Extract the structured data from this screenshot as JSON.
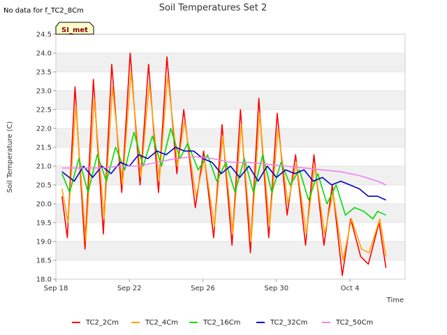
{
  "chart_data": {
    "type": "line",
    "title": "Soil Temperatures Set 2",
    "note": "No data for f_TC2_8Cm",
    "badge": "SI_met",
    "xlabel": "Time",
    "ylabel": "Soil Temperature (C)",
    "xlim": [
      "2016-09-18",
      "2016-10-07"
    ],
    "ylim": [
      18.0,
      24.5
    ],
    "x_ticks": [
      {
        "date": "2016-09-18",
        "label": "Sep 18"
      },
      {
        "date": "2016-09-22",
        "label": "Sep 22"
      },
      {
        "date": "2016-09-26",
        "label": "Sep 26"
      },
      {
        "date": "2016-09-30",
        "label": "Sep 30"
      },
      {
        "date": "2016-10-04",
        "label": "Oct 4"
      }
    ],
    "y_ticks": [
      "18.0",
      "18.5",
      "19.0",
      "19.5",
      "20.0",
      "20.5",
      "21.0",
      "21.5",
      "22.0",
      "22.5",
      "23.0",
      "23.5",
      "24.0",
      "24.5"
    ],
    "grid": "horizontal bands",
    "legend_position": "bottom",
    "series": [
      {
        "name": "TC2_2Cm",
        "color": "#ff0000",
        "points": [
          [
            "2016-09-18T08:00",
            20.2
          ],
          [
            "2016-09-18T15:00",
            19.1
          ],
          [
            "2016-09-19T01:00",
            23.1
          ],
          [
            "2016-09-19T14:00",
            18.8
          ],
          [
            "2016-09-20T01:00",
            23.3
          ],
          [
            "2016-09-20T14:00",
            19.2
          ],
          [
            "2016-09-21T01:00",
            23.7
          ],
          [
            "2016-09-21T14:00",
            20.3
          ],
          [
            "2016-09-22T01:00",
            24.0
          ],
          [
            "2016-09-22T14:00",
            20.5
          ],
          [
            "2016-09-23T01:00",
            23.7
          ],
          [
            "2016-09-23T14:00",
            20.3
          ],
          [
            "2016-09-24T01:00",
            23.9
          ],
          [
            "2016-09-24T14:00",
            20.8
          ],
          [
            "2016-09-24T23:00",
            22.5
          ],
          [
            "2016-09-25T14:00",
            19.9
          ],
          [
            "2016-09-26T01:00",
            21.4
          ],
          [
            "2016-09-26T14:00",
            19.1
          ],
          [
            "2016-09-27T01:00",
            22.1
          ],
          [
            "2016-09-27T14:00",
            18.9
          ],
          [
            "2016-09-28T01:00",
            22.5
          ],
          [
            "2016-09-28T14:00",
            18.7
          ],
          [
            "2016-09-29T01:00",
            22.8
          ],
          [
            "2016-09-29T14:00",
            19.1
          ],
          [
            "2016-09-30T01:00",
            22.4
          ],
          [
            "2016-09-30T14:00",
            19.7
          ],
          [
            "2016-10-01T01:00",
            21.3
          ],
          [
            "2016-10-01T14:00",
            18.9
          ],
          [
            "2016-10-02T01:00",
            21.3
          ],
          [
            "2016-10-02T14:00",
            18.9
          ],
          [
            "2016-10-03T01:00",
            20.5
          ],
          [
            "2016-10-03T14:00",
            18.1
          ],
          [
            "2016-10-04T01:00",
            19.6
          ],
          [
            "2016-10-04T14:00",
            18.6
          ],
          [
            "2016-10-05T00:00",
            18.4
          ],
          [
            "2016-10-05T14:00",
            19.5
          ],
          [
            "2016-10-05T23:00",
            18.3
          ]
        ]
      },
      {
        "name": "TC2_4Cm",
        "color": "#ffa500",
        "points": [
          [
            "2016-09-18T08:00",
            20.4
          ],
          [
            "2016-09-18T16:00",
            19.5
          ],
          [
            "2016-09-19T02:00",
            22.6
          ],
          [
            "2016-09-19T15:00",
            19.0
          ],
          [
            "2016-09-20T02:00",
            22.8
          ],
          [
            "2016-09-20T15:00",
            19.6
          ],
          [
            "2016-09-21T02:00",
            23.1
          ],
          [
            "2016-09-21T15:00",
            20.5
          ],
          [
            "2016-09-22T02:00",
            23.5
          ],
          [
            "2016-09-22T15:00",
            20.7
          ],
          [
            "2016-09-23T02:00",
            23.2
          ],
          [
            "2016-09-23T15:00",
            20.6
          ],
          [
            "2016-09-24T02:00",
            23.4
          ],
          [
            "2016-09-24T15:00",
            21.0
          ],
          [
            "2016-09-25T00:00",
            22.2
          ],
          [
            "2016-09-25T15:00",
            20.2
          ],
          [
            "2016-09-26T02:00",
            21.2
          ],
          [
            "2016-09-26T15:00",
            19.4
          ],
          [
            "2016-09-27T02:00",
            21.8
          ],
          [
            "2016-09-27T15:00",
            19.2
          ],
          [
            "2016-09-28T02:00",
            22.1
          ],
          [
            "2016-09-28T15:00",
            19.0
          ],
          [
            "2016-09-29T02:00",
            22.4
          ],
          [
            "2016-09-29T15:00",
            19.4
          ],
          [
            "2016-09-30T02:00",
            22.0
          ],
          [
            "2016-09-30T15:00",
            20.0
          ],
          [
            "2016-10-01T02:00",
            21.1
          ],
          [
            "2016-10-01T15:00",
            19.2
          ],
          [
            "2016-10-02T02:00",
            21.0
          ],
          [
            "2016-10-02T15:00",
            19.2
          ],
          [
            "2016-10-03T02:00",
            20.3
          ],
          [
            "2016-10-03T15:00",
            18.5
          ],
          [
            "2016-10-04T02:00",
            19.6
          ],
          [
            "2016-10-04T15:00",
            18.8
          ],
          [
            "2016-10-05T01:00",
            18.7
          ],
          [
            "2016-10-05T15:00",
            19.6
          ],
          [
            "2016-10-05T23:00",
            18.6
          ]
        ]
      },
      {
        "name": "TC2_16Cm",
        "color": "#00dd00",
        "points": [
          [
            "2016-09-18T08:00",
            20.8
          ],
          [
            "2016-09-18T18:00",
            20.3
          ],
          [
            "2016-09-19T06:00",
            21.2
          ],
          [
            "2016-09-19T18:00",
            20.3
          ],
          [
            "2016-09-20T06:00",
            21.3
          ],
          [
            "2016-09-20T18:00",
            20.6
          ],
          [
            "2016-09-21T06:00",
            21.5
          ],
          [
            "2016-09-21T18:00",
            20.9
          ],
          [
            "2016-09-22T06:00",
            21.9
          ],
          [
            "2016-09-22T18:00",
            21.0
          ],
          [
            "2016-09-23T06:00",
            21.8
          ],
          [
            "2016-09-23T18:00",
            21.0
          ],
          [
            "2016-09-24T06:00",
            22.0
          ],
          [
            "2016-09-24T18:00",
            21.2
          ],
          [
            "2016-09-25T04:00",
            21.6
          ],
          [
            "2016-09-25T18:00",
            20.9
          ],
          [
            "2016-09-26T06:00",
            21.3
          ],
          [
            "2016-09-26T18:00",
            20.6
          ],
          [
            "2016-09-27T06:00",
            21.1
          ],
          [
            "2016-09-27T18:00",
            20.3
          ],
          [
            "2016-09-28T06:00",
            21.2
          ],
          [
            "2016-09-28T18:00",
            20.3
          ],
          [
            "2016-09-29T06:00",
            21.3
          ],
          [
            "2016-09-29T18:00",
            20.3
          ],
          [
            "2016-09-30T06:00",
            21.1
          ],
          [
            "2016-09-30T18:00",
            20.5
          ],
          [
            "2016-10-01T06:00",
            20.9
          ],
          [
            "2016-10-01T18:00",
            20.1
          ],
          [
            "2016-10-02T06:00",
            20.8
          ],
          [
            "2016-10-02T18:00",
            20.0
          ],
          [
            "2016-10-03T06:00",
            20.5
          ],
          [
            "2016-10-03T18:00",
            19.7
          ],
          [
            "2016-10-04T06:00",
            19.9
          ],
          [
            "2016-10-04T18:00",
            19.8
          ],
          [
            "2016-10-05T06:00",
            19.6
          ],
          [
            "2016-10-05T12:00",
            19.8
          ],
          [
            "2016-10-05T23:00",
            19.7
          ]
        ]
      },
      {
        "name": "TC2_32Cm",
        "color": "#0000cc",
        "points": [
          [
            "2016-09-18T08:00",
            20.85
          ],
          [
            "2016-09-19T00:00",
            20.6
          ],
          [
            "2016-09-19T12:00",
            21.0
          ],
          [
            "2016-09-20T00:00",
            20.7
          ],
          [
            "2016-09-20T12:00",
            21.0
          ],
          [
            "2016-09-21T00:00",
            20.8
          ],
          [
            "2016-09-21T12:00",
            21.1
          ],
          [
            "2016-09-22T00:00",
            21.0
          ],
          [
            "2016-09-22T12:00",
            21.3
          ],
          [
            "2016-09-23T00:00",
            21.2
          ],
          [
            "2016-09-23T12:00",
            21.4
          ],
          [
            "2016-09-24T00:00",
            21.3
          ],
          [
            "2016-09-24T12:00",
            21.5
          ],
          [
            "2016-09-25T00:00",
            21.4
          ],
          [
            "2016-09-25T12:00",
            21.4
          ],
          [
            "2016-09-26T00:00",
            21.2
          ],
          [
            "2016-09-26T12:00",
            21.1
          ],
          [
            "2016-09-27T00:00",
            20.8
          ],
          [
            "2016-09-27T12:00",
            21.0
          ],
          [
            "2016-09-28T00:00",
            20.7
          ],
          [
            "2016-09-28T12:00",
            21.0
          ],
          [
            "2016-09-29T00:00",
            20.6
          ],
          [
            "2016-09-29T12:00",
            21.0
          ],
          [
            "2016-09-30T00:00",
            20.7
          ],
          [
            "2016-09-30T12:00",
            20.9
          ],
          [
            "2016-10-01T00:00",
            20.8
          ],
          [
            "2016-10-01T12:00",
            20.9
          ],
          [
            "2016-10-02T00:00",
            20.6
          ],
          [
            "2016-10-02T12:00",
            20.7
          ],
          [
            "2016-10-03T00:00",
            20.5
          ],
          [
            "2016-10-03T12:00",
            20.6
          ],
          [
            "2016-10-04T00:00",
            20.5
          ],
          [
            "2016-10-04T12:00",
            20.4
          ],
          [
            "2016-10-05T00:00",
            20.2
          ],
          [
            "2016-10-05T12:00",
            20.2
          ],
          [
            "2016-10-05T23:00",
            20.1
          ]
        ]
      },
      {
        "name": "TC2_50Cm",
        "color": "#ee82ee",
        "points": [
          [
            "2016-09-18T08:00",
            20.95
          ],
          [
            "2016-09-19T12:00",
            20.95
          ],
          [
            "2016-09-20T12:00",
            20.95
          ],
          [
            "2016-09-21T12:00",
            21.0
          ],
          [
            "2016-09-22T12:00",
            21.0
          ],
          [
            "2016-09-23T12:00",
            21.1
          ],
          [
            "2016-09-24T12:00",
            21.2
          ],
          [
            "2016-09-25T12:00",
            21.25
          ],
          [
            "2016-09-26T12:00",
            21.2
          ],
          [
            "2016-09-27T12:00",
            21.1
          ],
          [
            "2016-09-28T12:00",
            21.1
          ],
          [
            "2016-09-29T12:00",
            21.05
          ],
          [
            "2016-09-30T12:00",
            21.0
          ],
          [
            "2016-10-01T12:00",
            20.95
          ],
          [
            "2016-10-02T12:00",
            20.9
          ],
          [
            "2016-10-03T12:00",
            20.85
          ],
          [
            "2016-10-04T12:00",
            20.75
          ],
          [
            "2016-10-05T12:00",
            20.6
          ],
          [
            "2016-10-05T23:00",
            20.5
          ]
        ]
      }
    ]
  }
}
